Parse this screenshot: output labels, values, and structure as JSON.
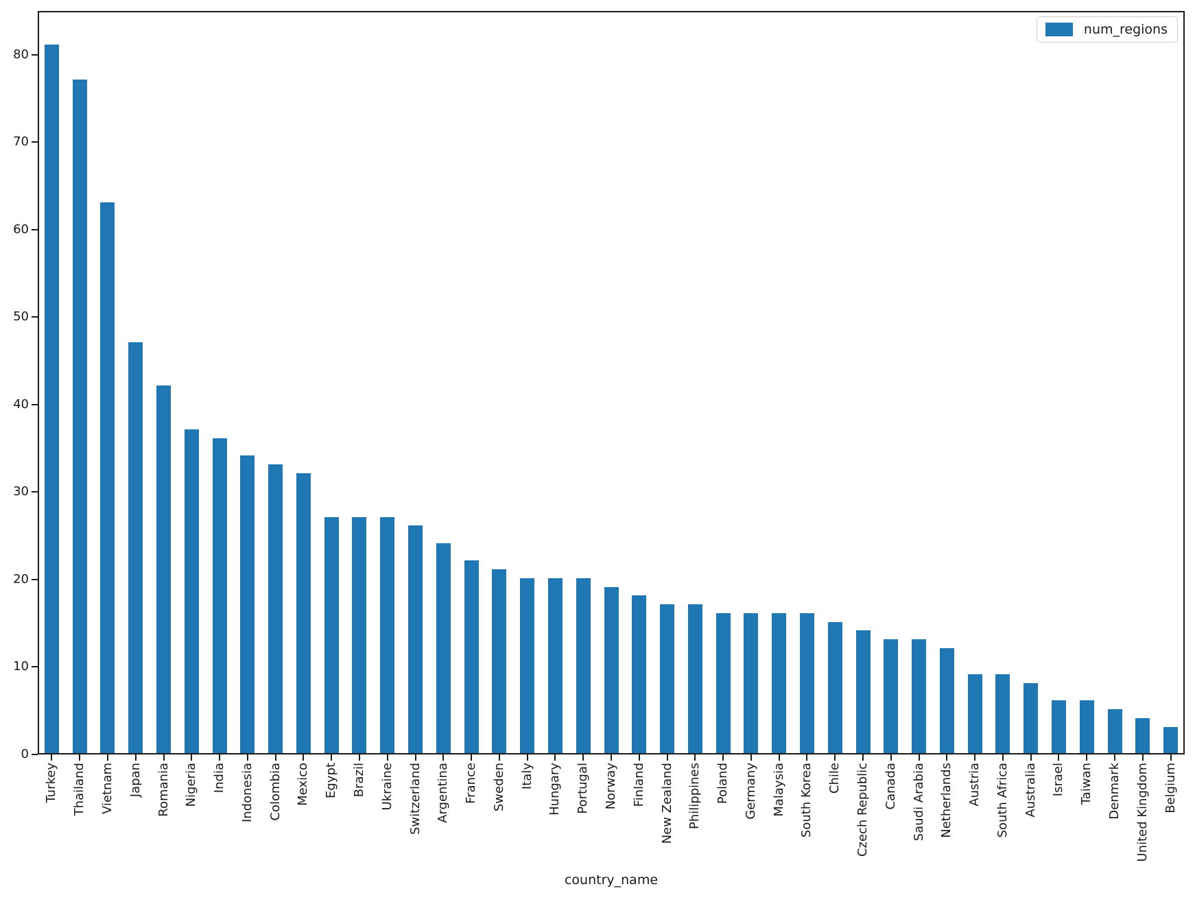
{
  "chart_data": {
    "type": "bar",
    "title": "",
    "xlabel": "country_name",
    "ylabel": "",
    "legend_label": "num_regions",
    "legend_position": "upper right",
    "bar_color": "#1f77b4",
    "grid": false,
    "ylim": [
      0,
      85
    ],
    "y_ticks": [
      0,
      10,
      20,
      30,
      40,
      50,
      60,
      70,
      80
    ],
    "categories": [
      "Turkey",
      "Thailand",
      "Vietnam",
      "Japan",
      "Romania",
      "Nigeria",
      "India",
      "Indonesia",
      "Colombia",
      "Mexico",
      "Egypt",
      "Brazil",
      "Ukraine",
      "Switzerland",
      "Argentina",
      "France",
      "Sweden",
      "Italy",
      "Hungary",
      "Portugal",
      "Norway",
      "Finland",
      "New Zealand",
      "Philippines",
      "Poland",
      "Germany",
      "Malaysia",
      "South Korea",
      "Chile",
      "Czech Republic",
      "Canada",
      "Saudi Arabia",
      "Netherlands",
      "Austria",
      "South Africa",
      "Australia",
      "Israel",
      "Taiwan",
      "Denmark",
      "United Kingdom",
      "Belgium"
    ],
    "values": [
      81,
      77,
      63,
      47,
      42,
      37,
      36,
      34,
      33,
      32,
      27,
      27,
      27,
      26,
      24,
      22,
      21,
      20,
      20,
      20,
      19,
      18,
      17,
      17,
      16,
      16,
      16,
      16,
      15,
      14,
      13,
      13,
      12,
      9,
      9,
      8,
      6,
      6,
      5,
      4,
      3
    ]
  }
}
